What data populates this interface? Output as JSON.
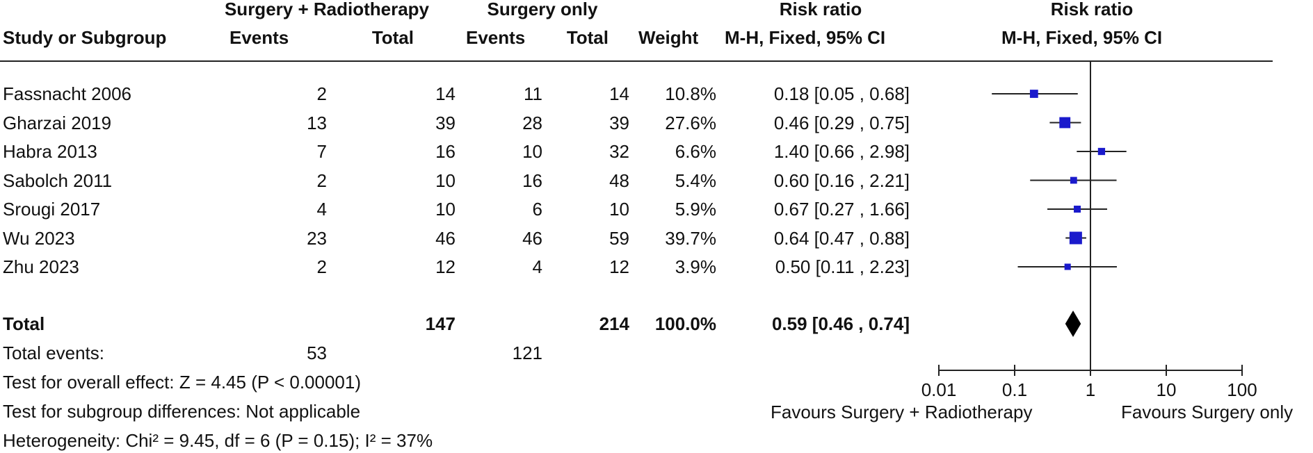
{
  "header": {
    "group1": "Surgery + Radiotherapy",
    "group2": "Surgery only",
    "rr_left_title": "Risk ratio",
    "rr_right_title": "Risk ratio",
    "col_study": "Study or Subgroup",
    "col_events1": "Events",
    "col_total1": "Total",
    "col_events2": "Events",
    "col_total2": "Total",
    "col_weight": "Weight",
    "col_rr": "M-H, Fixed, 95% CI",
    "col_plot": "M-H, Fixed, 95% CI"
  },
  "rows": [
    {
      "study": "Fassnacht 2006",
      "e1": "2",
      "t1": "14",
      "e2": "11",
      "t2": "14",
      "weight": "10.8%",
      "ci": "0.18 [0.05 , 0.68]"
    },
    {
      "study": "Gharzai 2019",
      "e1": "13",
      "t1": "39",
      "e2": "28",
      "t2": "39",
      "weight": "27.6%",
      "ci": "0.46 [0.29 , 0.75]"
    },
    {
      "study": "Habra 2013",
      "e1": "7",
      "t1": "16",
      "e2": "10",
      "t2": "32",
      "weight": "6.6%",
      "ci": "1.40 [0.66 , 2.98]"
    },
    {
      "study": "Sabolch 2011",
      "e1": "2",
      "t1": "10",
      "e2": "16",
      "t2": "48",
      "weight": "5.4%",
      "ci": "0.60 [0.16 , 2.21]"
    },
    {
      "study": "Srougi 2017",
      "e1": "4",
      "t1": "10",
      "e2": "6",
      "t2": "10",
      "weight": "5.9%",
      "ci": "0.67 [0.27 , 1.66]"
    },
    {
      "study": "Wu 2023",
      "e1": "23",
      "t1": "46",
      "e2": "46",
      "t2": "59",
      "weight": "39.7%",
      "ci": "0.64 [0.47 , 0.88]"
    },
    {
      "study": "Zhu 2023",
      "e1": "2",
      "t1": "12",
      "e2": "4",
      "t2": "12",
      "weight": "3.9%",
      "ci": "0.50 [0.11 , 2.23]"
    }
  ],
  "total": {
    "label": "Total",
    "t1": "147",
    "t2": "214",
    "weight": "100.0%",
    "ci": "0.59 [0.46 , 0.74]"
  },
  "total_events": {
    "label": "Total events:",
    "e1": "53",
    "e2": "121"
  },
  "footer": {
    "overall": "Test for overall effect: Z = 4.45 (P < 0.00001)",
    "subgroup": "Test for subgroup differences: Not applicable",
    "heterogeneity": "Heterogeneity: Chi² = 9.45, df = 6 (P = 0.15); I² = 37%"
  },
  "axis": {
    "ticks": [
      "0.01",
      "0.1",
      "1",
      "10",
      "100"
    ],
    "favours_left": "Favours Surgery + Radiotherapy",
    "favours_right": "Favours Surgery only"
  },
  "colors": {
    "marker": "#1a1acc",
    "line": "#222222"
  },
  "chart_data": {
    "type": "forest",
    "scale": "log",
    "xlim": [
      0.01,
      100
    ],
    "reference": 1,
    "studies": [
      {
        "name": "Fassnacht 2006",
        "rr": 0.18,
        "lo": 0.05,
        "hi": 0.68,
        "weight": 10.8
      },
      {
        "name": "Gharzai 2019",
        "rr": 0.46,
        "lo": 0.29,
        "hi": 0.75,
        "weight": 27.6
      },
      {
        "name": "Habra 2013",
        "rr": 1.4,
        "lo": 0.66,
        "hi": 2.98,
        "weight": 6.6
      },
      {
        "name": "Sabolch 2011",
        "rr": 0.6,
        "lo": 0.16,
        "hi": 2.21,
        "weight": 5.4
      },
      {
        "name": "Srougi 2017",
        "rr": 0.67,
        "lo": 0.27,
        "hi": 1.66,
        "weight": 5.9
      },
      {
        "name": "Wu 2023",
        "rr": 0.64,
        "lo": 0.47,
        "hi": 0.88,
        "weight": 39.7
      },
      {
        "name": "Zhu 2023",
        "rr": 0.5,
        "lo": 0.11,
        "hi": 2.23,
        "weight": 3.9
      }
    ],
    "pooled": {
      "rr": 0.59,
      "lo": 0.46,
      "hi": 0.74
    }
  }
}
